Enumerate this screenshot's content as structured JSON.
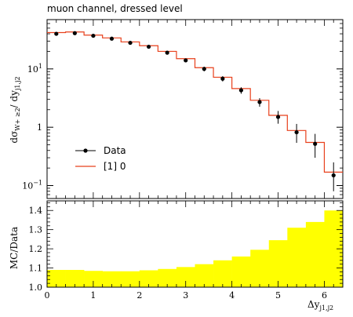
{
  "chart_data": [
    {
      "type": "line",
      "panel": "main",
      "title": "muon channel, dressed level",
      "ylabel": "dσ_{W+≥2}/dy_{j1,j2}",
      "ylabel_parts": {
        "prefix": "dσ",
        "sub": "W+ ≥2",
        "mid": "/ dy",
        "sub2": "j1,j2"
      },
      "yscale": "log",
      "xlim": [
        0,
        6.4
      ],
      "ylim": [
        0.06,
        70
      ],
      "yticks": [
        {
          "value": 0.1,
          "label_base": "10",
          "label_exp": "−1"
        },
        {
          "value": 1,
          "label_base": "1",
          "label_exp": ""
        },
        {
          "value": 10,
          "label_base": "10",
          "label_exp": "1"
        }
      ],
      "bin_edges": [
        0,
        0.4,
        0.8,
        1.2,
        1.6,
        2.0,
        2.4,
        2.8,
        3.2,
        3.6,
        4.0,
        4.4,
        4.8,
        5.2,
        5.6,
        6.0,
        6.4
      ],
      "series": [
        {
          "name": "Data",
          "kind": "points",
          "color": "#000000",
          "x": [
            0.2,
            0.6,
            1.0,
            1.4,
            1.8,
            2.2,
            2.6,
            3.0,
            3.4,
            3.8,
            4.2,
            4.6,
            5.0,
            5.4,
            5.8,
            6.2
          ],
          "y": [
            40,
            41,
            37,
            33,
            28,
            24,
            19,
            14,
            10,
            6.8,
            4.3,
            2.7,
            1.5,
            0.82,
            0.52,
            0.15
          ],
          "yerr_low": [
            2.5,
            2.5,
            2.2,
            2.0,
            1.7,
            1.5,
            1.2,
            1.0,
            0.9,
            0.7,
            0.55,
            0.45,
            0.35,
            0.28,
            0.22,
            0.07
          ],
          "yerr_high": [
            2.5,
            2.5,
            2.2,
            2.0,
            1.7,
            1.5,
            1.2,
            1.0,
            0.9,
            0.7,
            0.55,
            0.45,
            0.4,
            0.32,
            0.25,
            0.1
          ]
        },
        {
          "name": "[1] 0",
          "kind": "step",
          "color": "#e8401c",
          "values": [
            42,
            43,
            38,
            34,
            29,
            25,
            20,
            15,
            10.5,
            7.2,
            4.6,
            2.9,
            1.6,
            0.88,
            0.55,
            0.17
          ]
        }
      ],
      "legend": {
        "placement": "lower-left",
        "entries": [
          "Data",
          "[1] 0"
        ]
      }
    },
    {
      "type": "area",
      "panel": "ratio",
      "ylabel": "MC/Data",
      "xlabel": "Δy_{j1,j2}",
      "xlabel_parts": {
        "prefix": "Δy",
        "sub": "j1,j2"
      },
      "xlim": [
        0,
        6.4
      ],
      "ylim": [
        1.0,
        1.45
      ],
      "yticks": [
        1.0,
        1.1,
        1.2,
        1.3,
        1.4
      ],
      "xticks": [
        0,
        1,
        2,
        3,
        4,
        5,
        6
      ],
      "band_color": "#ffff00",
      "band_upper": [
        1.09,
        1.09,
        1.085,
        1.083,
        1.083,
        1.088,
        1.095,
        1.105,
        1.12,
        1.14,
        1.16,
        1.195,
        1.245,
        1.31,
        1.34,
        1.4
      ],
      "band_lower": [
        1.0,
        1.0,
        1.0,
        1.0,
        1.0,
        1.0,
        1.0,
        1.0,
        1.0,
        1.0,
        1.0,
        1.0,
        1.0,
        1.0,
        1.0,
        1.0
      ]
    }
  ]
}
